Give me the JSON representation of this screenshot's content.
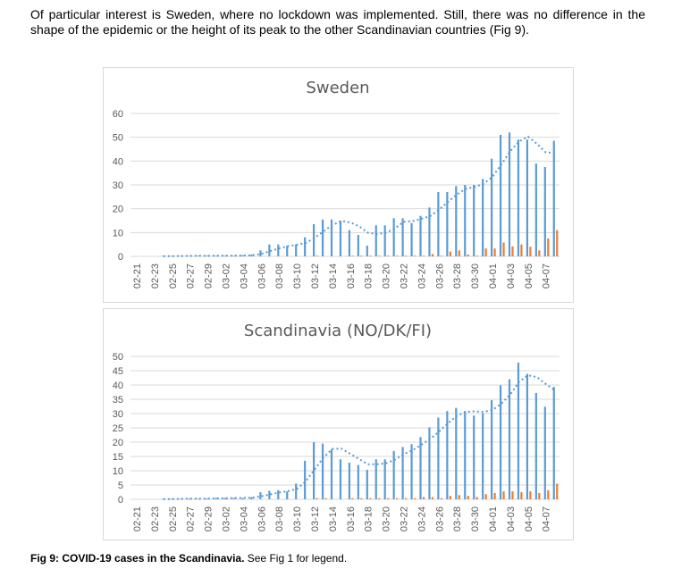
{
  "intro_text": "Of particular interest is Sweden, where no lockdown was implemented. Still, there was no difference in the shape of the epidemic or the height of its peak to the other Scandinavian countries (Fig 9).",
  "caption": {
    "label": "Fig 9: COVID-19 cases in the Scandinavia.",
    "text": " See Fig 1 for legend."
  },
  "colors": {
    "primary": "#5b9bd5",
    "secondary": "#ed7d31",
    "grid": "#d9d9d9",
    "axis_text": "#595959"
  },
  "chart_data": [
    {
      "type": "bar",
      "title": "Sweden",
      "ylim": [
        0,
        60
      ],
      "yticks": [
        0,
        10,
        20,
        30,
        40,
        50,
        60
      ],
      "categories": [
        "02-21",
        "02-22",
        "02-23",
        "02-24",
        "02-25",
        "02-26",
        "02-27",
        "02-28",
        "02-29",
        "03-01",
        "03-02",
        "03-03",
        "03-04",
        "03-05",
        "03-06",
        "03-07",
        "03-08",
        "03-09",
        "03-10",
        "03-11",
        "03-12",
        "03-13",
        "03-14",
        "03-15",
        "03-16",
        "03-17",
        "03-18",
        "03-19",
        "03-20",
        "03-21",
        "03-22",
        "03-23",
        "03-24",
        "03-25",
        "03-26",
        "03-27",
        "03-28",
        "03-29",
        "03-30",
        "03-31",
        "04-01",
        "04-02",
        "04-03",
        "04-04",
        "04-05",
        "04-06",
        "04-07",
        "04-08"
      ],
      "xtick_labels": [
        "02-21",
        "02-23",
        "02-25",
        "02-27",
        "02-29",
        "03-02",
        "03-04",
        "03-06",
        "03-08",
        "03-10",
        "03-12",
        "03-14",
        "03-16",
        "03-18",
        "03-20",
        "03-22",
        "03-24",
        "03-26",
        "03-28",
        "03-30",
        "04-01",
        "04-03",
        "04-05",
        "04-07"
      ],
      "series": [
        {
          "name": "primary",
          "values": [
            0,
            0,
            0,
            0.2,
            0.2,
            0.2,
            0.2,
            0.3,
            0.3,
            0.3,
            0.3,
            0.3,
            0.5,
            0.8,
            2.5,
            5,
            5,
            4.5,
            5,
            8,
            13.5,
            15.5,
            15.5,
            15,
            11,
            9,
            4.5,
            13,
            13,
            16,
            16,
            14,
            17,
            20.5,
            27,
            27,
            29.5,
            30,
            30,
            32.5,
            41,
            51,
            52,
            49,
            49,
            39,
            37.5,
            48.5
          ]
        },
        {
          "name": "secondary",
          "values": [
            0,
            0,
            0,
            0,
            0,
            0,
            0,
            0,
            0,
            0,
            0,
            0,
            0,
            0,
            0,
            0,
            0,
            0,
            0,
            0,
            0.3,
            0,
            0,
            0,
            0.3,
            0.3,
            0.3,
            0.3,
            0.3,
            0.3,
            0.3,
            0.3,
            0.3,
            1,
            0.3,
            2,
            2.5,
            0.8,
            0.3,
            3.3,
            3.3,
            5.8,
            4.2,
            5,
            4,
            2.5,
            7.5,
            11
          ]
        }
      ],
      "trendline": {
        "type": "moving_average",
        "period": 4,
        "series": "primary"
      }
    },
    {
      "type": "bar",
      "title": "Scandinavia (NO/DK/FI)",
      "ylim": [
        0,
        50
      ],
      "yticks": [
        0,
        5,
        10,
        15,
        20,
        25,
        30,
        35,
        40,
        45,
        50
      ],
      "categories": [
        "02-21",
        "02-22",
        "02-23",
        "02-24",
        "02-25",
        "02-26",
        "02-27",
        "02-28",
        "02-29",
        "03-01",
        "03-02",
        "03-03",
        "03-04",
        "03-05",
        "03-06",
        "03-07",
        "03-08",
        "03-09",
        "03-10",
        "03-11",
        "03-12",
        "03-13",
        "03-14",
        "03-15",
        "03-16",
        "03-17",
        "03-18",
        "03-19",
        "03-20",
        "03-21",
        "03-22",
        "03-23",
        "03-24",
        "03-25",
        "03-26",
        "03-27",
        "03-28",
        "03-29",
        "03-30",
        "03-31",
        "04-01",
        "04-02",
        "04-03",
        "04-04",
        "04-05",
        "04-06",
        "04-07",
        "04-08"
      ],
      "xtick_labels": [
        "02-21",
        "02-23",
        "02-25",
        "02-27",
        "02-29",
        "03-02",
        "03-04",
        "03-06",
        "03-08",
        "03-10",
        "03-12",
        "03-14",
        "03-16",
        "03-18",
        "03-20",
        "03-22",
        "03-24",
        "03-26",
        "03-28",
        "03-30",
        "04-01",
        "04-03",
        "04-05",
        "04-07"
      ],
      "series": [
        {
          "name": "primary",
          "values": [
            0,
            0,
            0,
            0.2,
            0.2,
            0.2,
            0.3,
            0.2,
            0.3,
            0.5,
            0.5,
            0.5,
            0.5,
            0.8,
            2.5,
            3,
            3.2,
            2.8,
            5.5,
            13.5,
            20,
            19.5,
            17.5,
            14,
            12.8,
            12,
            10.3,
            14,
            14,
            16.9,
            18.3,
            19.3,
            21.8,
            25.2,
            28.6,
            30.9,
            32,
            30.9,
            29.3,
            30.1,
            34.7,
            39.9,
            42,
            47.8,
            43.9,
            37.2,
            32.4,
            39.3
          ]
        },
        {
          "name": "secondary",
          "values": [
            0,
            0,
            0,
            0,
            0,
            0,
            0,
            0,
            0,
            0,
            0,
            0,
            0,
            0,
            0,
            0,
            0,
            0,
            0,
            0,
            0.4,
            0.4,
            0,
            0,
            0.4,
            0.4,
            0.4,
            0.4,
            0.4,
            0.4,
            0.4,
            0.4,
            0.8,
            0.8,
            0.4,
            1.2,
            1.5,
            1.2,
            0.8,
            1.8,
            2.2,
            2.8,
            2.8,
            2.5,
            2.8,
            2.2,
            3.2,
            5.5
          ]
        }
      ],
      "trendline": {
        "type": "moving_average",
        "period": 4,
        "series": "primary"
      }
    }
  ]
}
